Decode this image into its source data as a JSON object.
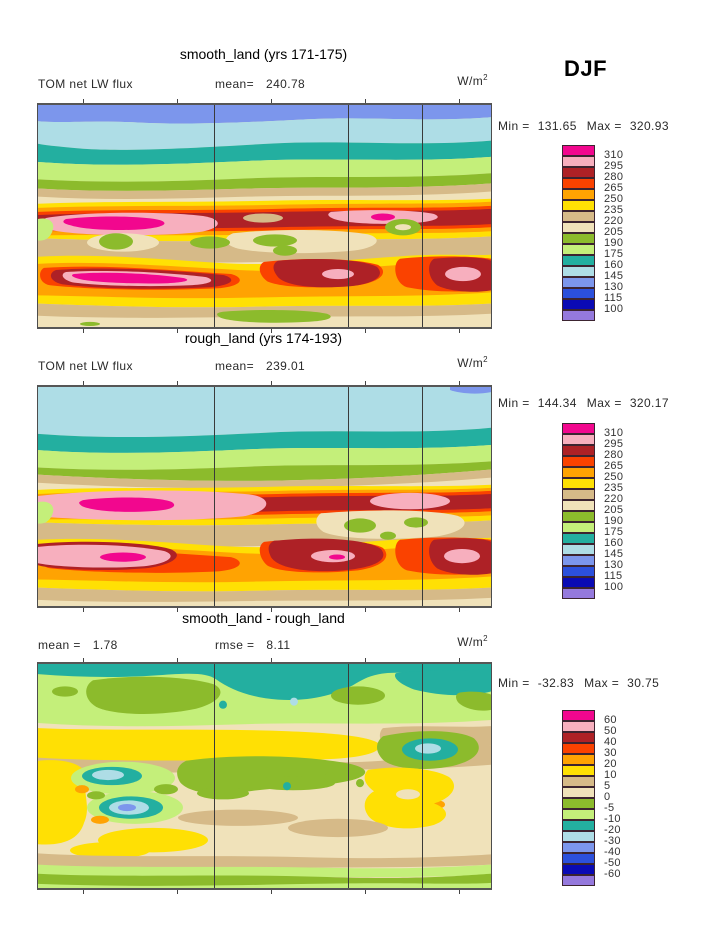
{
  "season_label": "DJF",
  "units_base": "W/m",
  "units_exponent": "2",
  "colorbar_colors_top_to_bottom": [
    "#F2078E",
    "#F7AFBE",
    "#AE2126",
    "#FA4200",
    "#FFA302",
    "#FFE004",
    "#D6BA88",
    "#F0E2BA",
    "#8CBB2C",
    "#C4EF7A",
    "#23AFA0",
    "#AEDDE6",
    "#7C96EC",
    "#2C50DC",
    "#0A0AB4",
    "#9579DD"
  ],
  "panels": [
    {
      "title": "smooth_land (yrs 171-175)",
      "row": {
        "slot1_label": "TOM net LW flux",
        "slot1_value": "",
        "slot2_label": "mean=",
        "slot2_value": "240.78"
      },
      "min_label": "Min =",
      "min_value": "131.65",
      "max_label": "Max =",
      "max_value": "320.93",
      "colorbar_labels": [
        "310",
        "295",
        "280",
        "265",
        "250",
        "235",
        "220",
        "205",
        "190",
        "175",
        "160",
        "145",
        "130",
        "115",
        "100"
      ]
    },
    {
      "title": "rough_land (yrs 174-193)",
      "row": {
        "slot1_label": "TOM net LW flux",
        "slot1_value": "",
        "slot2_label": "mean=",
        "slot2_value": "239.01"
      },
      "min_label": "Min =",
      "min_value": "144.34",
      "max_label": "Max =",
      "max_value": "320.17",
      "colorbar_labels": [
        "310",
        "295",
        "280",
        "265",
        "250",
        "235",
        "220",
        "205",
        "190",
        "175",
        "160",
        "145",
        "130",
        "115",
        "100"
      ]
    },
    {
      "title": "smooth_land - rough_land",
      "row": {
        "slot1_label": "mean =",
        "slot1_value": "1.78",
        "slot2_label": "rmse =",
        "slot2_value": "8.11"
      },
      "min_label": "Min =",
      "min_value": "-32.83",
      "max_label": "Max =",
      "max_value": "30.75",
      "colorbar_labels": [
        "60",
        "50",
        "40",
        "30",
        "20",
        "10",
        "5",
        "0",
        "-5",
        "-10",
        "-20",
        "-30",
        "-40",
        "-50",
        "-60"
      ]
    }
  ],
  "chart_data": [
    {
      "type": "heatmap",
      "title": "smooth_land (yrs 171-175)",
      "field": "TOM net LW flux",
      "season": "DJF",
      "units": "W/m2",
      "mean": 240.78,
      "min": 131.65,
      "max": 320.93,
      "contour_levels": [
        100,
        115,
        130,
        145,
        160,
        175,
        190,
        205,
        220,
        235,
        250,
        265,
        280,
        295,
        310
      ],
      "palette_low_to_high": [
        "#9579DD",
        "#0A0AB4",
        "#2C50DC",
        "#7C96EC",
        "#AEDDE6",
        "#23AFA0",
        "#C4EF7A",
        "#8CBB2C",
        "#F0E2BA",
        "#D6BA88",
        "#FFE004",
        "#FFA302",
        "#FA4200",
        "#AE2126",
        "#F7AFBE",
        "#F2078E"
      ],
      "projection": "global lat-lon filled contour map",
      "pattern_summary": "Low values (blues/teal) over the northern high latitudes, maxima (pink/magenta >310) in two tropical bands, broad beige 205-220 field over the southern extratropics"
    },
    {
      "type": "heatmap",
      "title": "rough_land (yrs 174-193)",
      "field": "TOM net LW flux",
      "season": "DJF",
      "units": "W/m2",
      "mean": 239.01,
      "min": 144.34,
      "max": 320.17,
      "contour_levels": [
        100,
        115,
        130,
        145,
        160,
        175,
        190,
        205,
        220,
        235,
        250,
        265,
        280,
        295,
        310
      ],
      "palette_low_to_high": [
        "#9579DD",
        "#0A0AB4",
        "#2C50DC",
        "#7C96EC",
        "#AEDDE6",
        "#23AFA0",
        "#C4EF7A",
        "#8CBB2C",
        "#F0E2BA",
        "#D6BA88",
        "#FFE004",
        "#FFA302",
        "#FA4200",
        "#AE2126",
        "#F7AFBE",
        "#F2078E"
      ],
      "projection": "global lat-lon filled contour map",
      "pattern_summary": "Similar to smooth_land: pale-blue Arctic cap, tropical pink/magenta maxima, beige southern field"
    },
    {
      "type": "heatmap",
      "title": "smooth_land - rough_land",
      "field": "difference of TOM net LW flux",
      "season": "DJF",
      "units": "W/m2",
      "mean": 1.78,
      "rmse": 8.11,
      "min": -32.83,
      "max": 30.75,
      "contour_levels": [
        -60,
        -50,
        -40,
        -30,
        -20,
        -10,
        -5,
        0,
        5,
        10,
        20,
        30,
        40,
        50,
        60
      ],
      "palette_low_to_high": [
        "#9579DD",
        "#0A0AB4",
        "#2C50DC",
        "#7C96EC",
        "#AEDDE6",
        "#23AFA0",
        "#C4EF7A",
        "#8CBB2C",
        "#F0E2BA",
        "#D6BA88",
        "#FFE004",
        "#FFA302",
        "#FA4200",
        "#AE2126",
        "#F7AFBE",
        "#F2078E"
      ],
      "projection": "global lat-lon filled contour map",
      "pattern_summary": "Mostly small differences: teal (-10 to -20) band at far north, green (0 to -10) bands at high latitudes, beige/tan/yellow (0 to +20) in tropics with scattered teal/blue negative cells and orange positive spots"
    }
  ]
}
